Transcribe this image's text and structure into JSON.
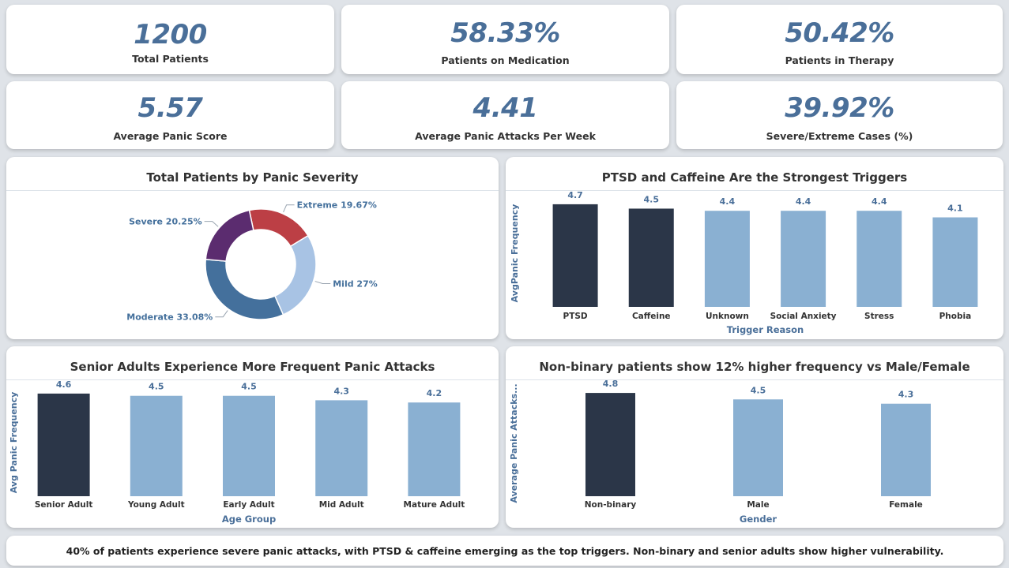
{
  "kpis": [
    {
      "value": "1200",
      "label": "Total Patients"
    },
    {
      "value": "58.33%",
      "label": "Patients on Medication"
    },
    {
      "value": "50.42%",
      "label": "Patients in Therapy"
    },
    {
      "value": "5.57",
      "label": "Average Panic Score"
    },
    {
      "value": "4.41",
      "label": "Average Panic Attacks Per Week"
    },
    {
      "value": "39.92%",
      "label": "Severe/Extreme Cases (%)"
    }
  ],
  "colors": {
    "highlight": "#2b3648",
    "normal": "#8ab0d2",
    "value_label": "#4a6f99",
    "axis_title": "#4a6f99"
  },
  "footer": {
    "text": "40% of patients experience severe panic attacks, with PTSD & caffeine emerging as the top triggers. Non-binary and senior adults show higher vulnerability."
  },
  "chart_data": [
    {
      "type": "pie",
      "title": "Total Patients by Panic Severity",
      "slices": [
        {
          "label": "Extreme",
          "value": 19.67,
          "display": "Extreme 19.67%",
          "color": "#bc3f45"
        },
        {
          "label": "Mild",
          "value": 27,
          "display": "Mild 27%",
          "color": "#a8c3e4"
        },
        {
          "label": "Moderate",
          "value": 33.08,
          "display": "Moderate 33.08%",
          "color": "#44709c"
        },
        {
          "label": "Severe",
          "value": 20.25,
          "display": "Severe 20.25%",
          "color": "#5b2c6f"
        }
      ]
    },
    {
      "type": "bar",
      "title": "PTSD and Caffeine Are the Strongest Triggers",
      "xlabel": "Trigger Reason",
      "ylabel": "AvgPanic Frequency",
      "categories": [
        "PTSD",
        "Caffeine",
        "Unknown",
        "Social Anxiety",
        "Stress",
        "Phobia"
      ],
      "values": [
        4.7,
        4.5,
        4.4,
        4.4,
        4.4,
        4.1
      ],
      "highlight": [
        true,
        true,
        false,
        false,
        false,
        false
      ]
    },
    {
      "type": "bar",
      "title": "Senior Adults Experience More Frequent Panic Attacks",
      "xlabel": "Age Group",
      "ylabel": "Avg Panic Frequency",
      "categories": [
        "Senior Adult",
        "Young Adult",
        "Early Adult",
        "Mid Adult",
        "Mature Adult"
      ],
      "values": [
        4.6,
        4.5,
        4.5,
        4.3,
        4.2
      ],
      "highlight": [
        true,
        false,
        false,
        false,
        false
      ]
    },
    {
      "type": "bar",
      "title": "Non-binary patients show 12% higher frequency vs Male/Female",
      "xlabel": "Gender",
      "ylabel": "Average Panic Attacks...",
      "categories": [
        "Non-binary",
        "Male",
        "Female"
      ],
      "values": [
        4.8,
        4.5,
        4.3
      ],
      "highlight": [
        true,
        false,
        false
      ]
    }
  ]
}
